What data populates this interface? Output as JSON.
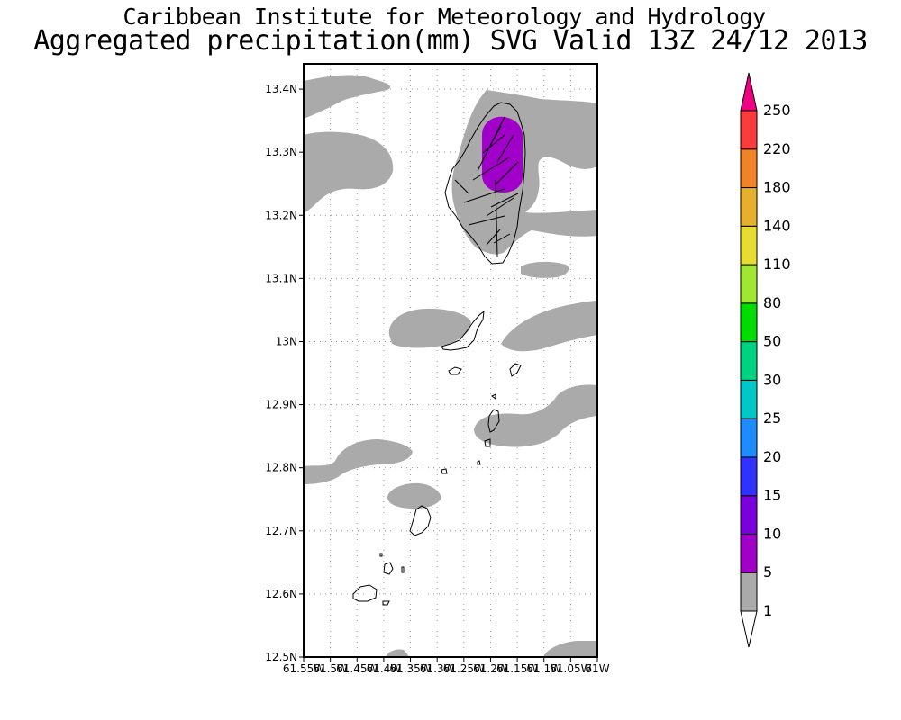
{
  "header": {
    "institute": "Caribbean Institute for Meteorology and Hydrology",
    "product": "Aggregated precipitation(mm) SVG Valid 13Z 24/12 2013"
  },
  "map": {
    "lat_range": [
      12.5,
      13.44
    ],
    "lon_range": [
      -61.55,
      -61.0
    ],
    "lat_ticks": [
      "13.4N",
      "13.3N",
      "13.2N",
      "13.1N",
      "13N",
      "12.9N",
      "12.8N",
      "12.7N",
      "12.6N",
      "12.5N"
    ],
    "lon_ticks": [
      "61.55W",
      "61.5W",
      "61.45W",
      "61.4W",
      "61.35W",
      "61.3W",
      "61.25W",
      "61.2W",
      "61.15W",
      "61.1W",
      "61.05W",
      "61W"
    ],
    "precip_colors": {
      "light": "#aaaaaa",
      "moderate": "#a000c8"
    }
  },
  "colorbar": {
    "labels": [
      "1",
      "5",
      "10",
      "15",
      "20",
      "25",
      "30",
      "50",
      "80",
      "110",
      "140",
      "180",
      "220",
      "250"
    ],
    "colors": [
      "#aaaaaa",
      "#a000c8",
      "#7a00dc",
      "#3232ff",
      "#1e8cff",
      "#00c8c8",
      "#00d282",
      "#00dc00",
      "#a0e632",
      "#e6dc32",
      "#e6af2d",
      "#f08228",
      "#fa3c3c",
      "#f00082"
    ]
  }
}
